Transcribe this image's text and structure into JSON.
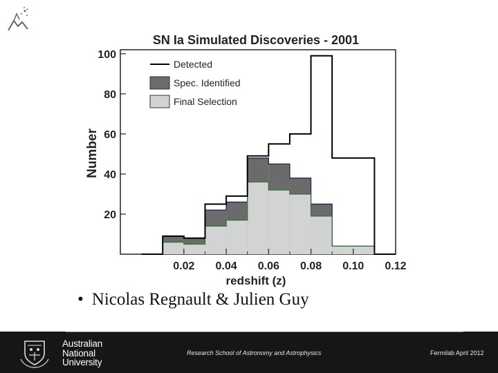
{
  "chart_data": {
    "type": "histogram",
    "title": "SN Ia Simulated Discoveries - 2001",
    "xlabel": "redshift (z)",
    "ylabel": "Number",
    "xlim": [
      -0.01,
      0.12
    ],
    "ylim": [
      0,
      102
    ],
    "x_ticks": [
      0.02,
      0.04,
      0.06,
      0.08,
      0.1,
      0.12
    ],
    "x_tick_labels": [
      "0.02",
      "0.04",
      "0.06",
      "0.08",
      "0.10",
      "0.12"
    ],
    "y_ticks": [
      20,
      40,
      60,
      80,
      100
    ],
    "y_tick_labels": [
      "20",
      "40",
      "60",
      "80",
      "100"
    ],
    "bin_edges": [
      0.0,
      0.01,
      0.02,
      0.03,
      0.04,
      0.05,
      0.06,
      0.07,
      0.08,
      0.09,
      0.1,
      0.11,
      0.12
    ],
    "series": [
      {
        "name": "Detected",
        "style": "outline",
        "color": "#000000",
        "values": [
          0,
          9,
          8,
          25,
          29,
          49,
          55,
          60,
          99,
          48,
          48,
          0
        ]
      },
      {
        "name": "Spec. Identified",
        "style": "filled",
        "color": "#6b6b6b",
        "values": [
          0,
          9,
          8,
          22,
          26,
          48,
          45,
          38,
          25,
          4,
          4,
          0
        ]
      },
      {
        "name": "Final Selection",
        "style": "filled",
        "color": "#d2d4d4",
        "values": [
          0,
          6,
          5,
          14,
          17,
          36,
          32,
          30,
          19,
          4,
          4,
          0
        ]
      }
    ],
    "legend_position": "top-left",
    "grid": false
  },
  "bullet": {
    "marker": "•",
    "text": "Nicolas Regnault & Julien Guy"
  },
  "footer": {
    "institution_lines": [
      "Australian",
      "National",
      "University"
    ],
    "school": "Research School of Astronomy and Astrophysics",
    "event": "Fermilab April 2012"
  },
  "colors": {
    "footer_bg": "#161616",
    "spec_fill": "#6b6b6b",
    "final_fill": "#d2d4d4",
    "final_edge": "#3c6b3c",
    "spec_edge": "#1a2a4a"
  }
}
